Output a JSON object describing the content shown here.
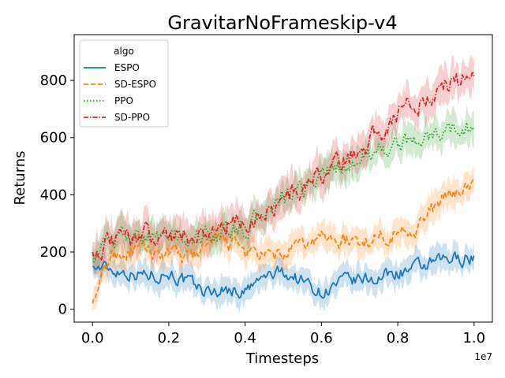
{
  "chart_data": {
    "type": "line",
    "title": "GravitarNoFrameskip-v4",
    "xlabel": "Timesteps",
    "ylabel": "Returns",
    "x_offset_label": "1e7",
    "xlim": [
      -0.048,
      1.048
    ],
    "ylim": [
      -45,
      960
    ],
    "xticks": [
      0.0,
      0.2,
      0.4,
      0.6,
      0.8,
      1.0
    ],
    "xtick_labels": [
      "0.0",
      "0.2",
      "0.4",
      "0.6",
      "0.8",
      "1.0"
    ],
    "yticks": [
      0,
      200,
      400,
      600,
      800
    ],
    "ytick_labels": [
      "0",
      "200",
      "400",
      "600",
      "800"
    ],
    "grid": false,
    "legend": {
      "title": "algo",
      "position": "top-left"
    },
    "series": [
      {
        "name": "ESPO",
        "color": "#1f77b4",
        "dash": "solid",
        "band": 45,
        "x": [
          0.0,
          0.05,
          0.1,
          0.15,
          0.2,
          0.25,
          0.3,
          0.35,
          0.4,
          0.45,
          0.5,
          0.55,
          0.6,
          0.65,
          0.7,
          0.75,
          0.8,
          0.85,
          0.9,
          0.95,
          1.0
        ],
        "y": [
          150,
          140,
          130,
          120,
          130,
          90,
          60,
          70,
          60,
          110,
          130,
          100,
          60,
          90,
          100,
          110,
          130,
          140,
          160,
          175,
          185
        ]
      },
      {
        "name": "SD-ESPO",
        "color": "#ff7f0e",
        "dash": "dashed",
        "band": 50,
        "x": [
          0.0,
          0.05,
          0.1,
          0.15,
          0.2,
          0.25,
          0.3,
          0.35,
          0.4,
          0.45,
          0.5,
          0.55,
          0.6,
          0.65,
          0.7,
          0.75,
          0.8,
          0.85,
          0.9,
          0.95,
          1.0
        ],
        "y": [
          20,
          190,
          200,
          200,
          190,
          180,
          220,
          240,
          200,
          180,
          190,
          220,
          250,
          240,
          230,
          260,
          270,
          290,
          360,
          410,
          440
        ]
      },
      {
        "name": "PPO",
        "color": "#2ca02c",
        "dash": "dotted",
        "band": 55,
        "x": [
          0.0,
          0.05,
          0.1,
          0.15,
          0.2,
          0.25,
          0.3,
          0.35,
          0.4,
          0.45,
          0.5,
          0.55,
          0.6,
          0.65,
          0.7,
          0.75,
          0.8,
          0.85,
          0.9,
          0.95,
          1.0
        ],
        "y": [
          190,
          240,
          260,
          255,
          250,
          240,
          260,
          270,
          280,
          330,
          380,
          410,
          470,
          500,
          520,
          560,
          570,
          590,
          610,
          630,
          640
        ]
      },
      {
        "name": "SD-PPO",
        "color": "#d62728",
        "dash": "dashdot",
        "band": 65,
        "x": [
          0.0,
          0.05,
          0.1,
          0.15,
          0.2,
          0.25,
          0.3,
          0.35,
          0.4,
          0.45,
          0.5,
          0.55,
          0.6,
          0.65,
          0.7,
          0.75,
          0.8,
          0.85,
          0.9,
          0.95,
          1.0
        ],
        "y": [
          200,
          230,
          250,
          270,
          260,
          260,
          270,
          290,
          300,
          340,
          380,
          420,
          470,
          510,
          560,
          620,
          690,
          720,
          760,
          800,
          810
        ]
      }
    ]
  }
}
